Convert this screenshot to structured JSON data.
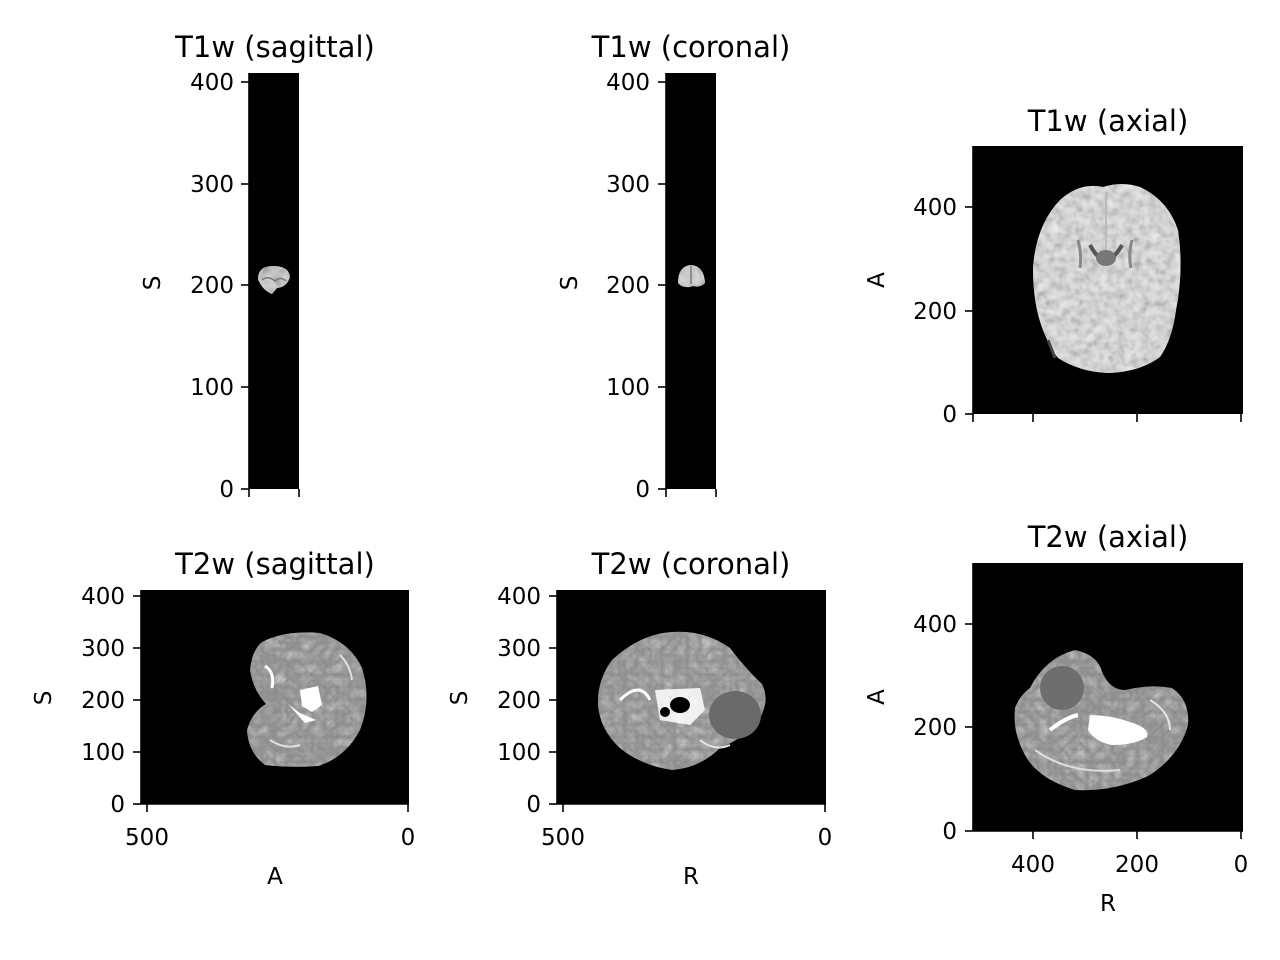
{
  "figure": {
    "panels": {
      "t1_sag": {
        "title": "T1w (sagittal)",
        "ylabel": "S",
        "yticks": [
          "0",
          "100",
          "200",
          "300",
          "400"
        ]
      },
      "t1_cor": {
        "title": "T1w (coronal)",
        "ylabel": "S",
        "yticks": [
          "0",
          "100",
          "200",
          "300",
          "400"
        ]
      },
      "t1_ax": {
        "title": "T1w (axial)",
        "ylabel": "A",
        "yticks": [
          "0",
          "200",
          "400"
        ]
      },
      "t2_sag": {
        "title": "T2w (sagittal)",
        "ylabel": "S",
        "xlabel": "A",
        "yticks": [
          "0",
          "100",
          "200",
          "300",
          "400"
        ],
        "xticks": [
          "500",
          "0"
        ]
      },
      "t2_cor": {
        "title": "T2w (coronal)",
        "ylabel": "S",
        "xlabel": "R",
        "yticks": [
          "0",
          "100",
          "200",
          "300",
          "400"
        ],
        "xticks": [
          "500",
          "0"
        ]
      },
      "t2_ax": {
        "title": "T2w (axial)",
        "ylabel": "A",
        "xlabel": "R",
        "yticks": [
          "0",
          "200",
          "400"
        ],
        "xticks": [
          "400",
          "200",
          "0"
        ]
      }
    }
  }
}
